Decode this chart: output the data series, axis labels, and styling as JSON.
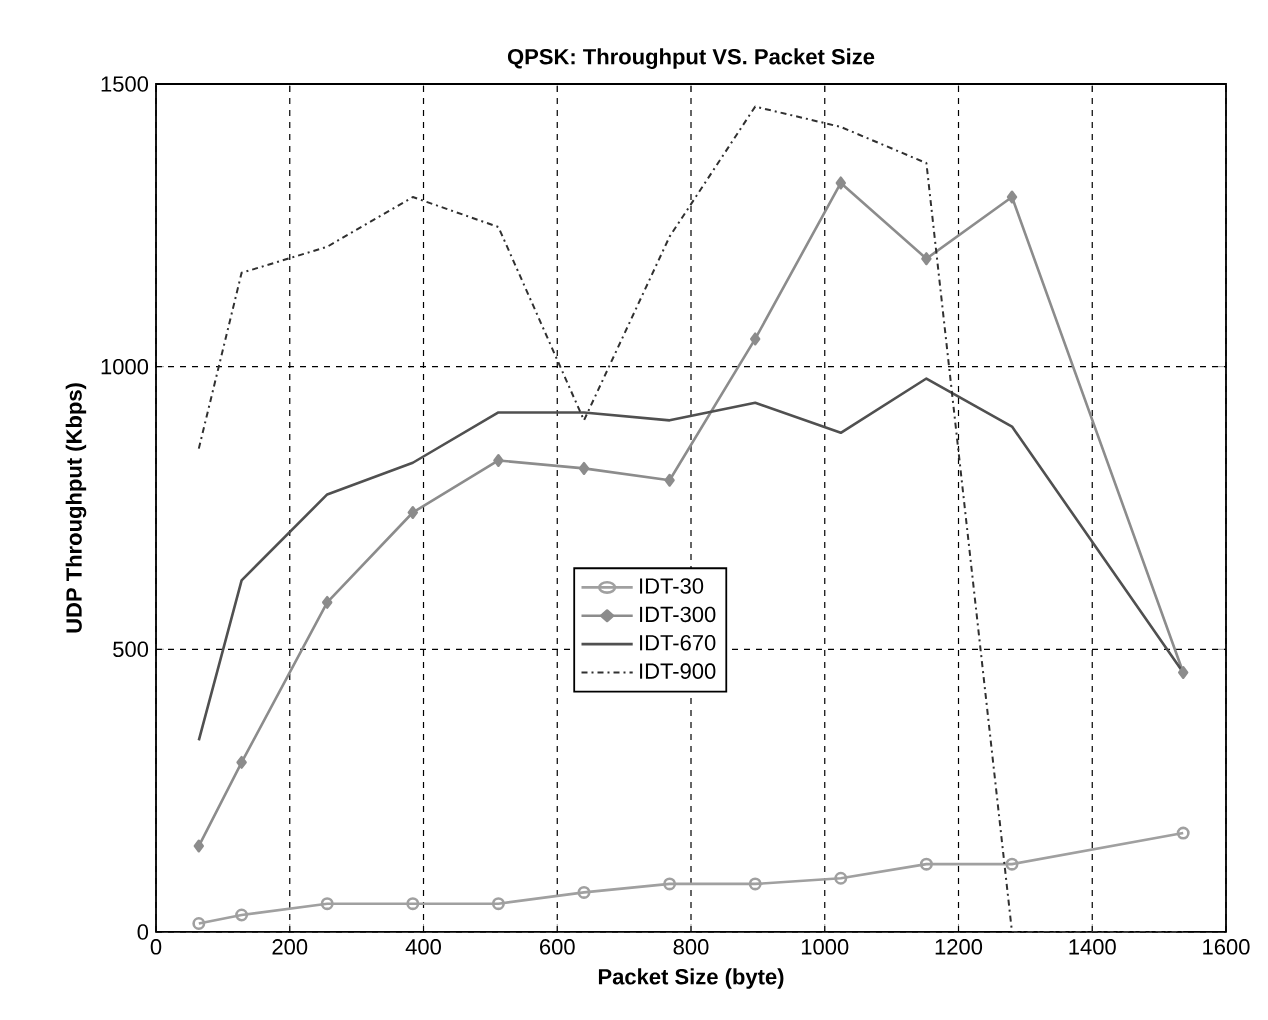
{
  "chart_data": {
    "type": "line",
    "title": "QPSK: Throughput VS. Packet Size",
    "xlabel": "Packet Size (byte)",
    "ylabel": "UDP Throughput (Kbps)",
    "x": [
      64,
      128,
      256,
      384,
      512,
      640,
      768,
      896,
      1024,
      1152,
      1280,
      1536
    ],
    "series": [
      {
        "name": "IDT-30",
        "color": "#a0a0a0",
        "marker": "circle",
        "line_style": "solid",
        "values": [
          15,
          30,
          50,
          50,
          50,
          70,
          85,
          85,
          95,
          120,
          120,
          175
        ]
      },
      {
        "name": "IDT-300",
        "color": "#8c8c8c",
        "marker": "diamond",
        "line_style": "solid",
        "values": [
          152,
          300,
          583,
          742,
          834,
          820,
          799,
          1049,
          1325,
          1191,
          1300,
          459
        ]
      },
      {
        "name": "IDT-670",
        "color": "#505050",
        "marker": "none",
        "line_style": "solid",
        "values": [
          339,
          622,
          774,
          830,
          919,
          919,
          905,
          936,
          883,
          979,
          894,
          459
        ]
      },
      {
        "name": "IDT-900",
        "color": "#303030",
        "marker": "none",
        "line_style": "dashdot",
        "values": [
          855,
          1166,
          1212,
          1300,
          1247,
          905,
          1230,
          1460,
          1424,
          1360,
          0,
          0
        ]
      }
    ],
    "xlim": [
      0,
      1600
    ],
    "ylim": [
      0,
      1500
    ],
    "xticks": [
      0,
      200,
      400,
      600,
      800,
      1000,
      1200,
      1400,
      1600
    ],
    "yticks": [
      0,
      500,
      1000,
      1500
    ],
    "grid": true,
    "legend": "center"
  }
}
